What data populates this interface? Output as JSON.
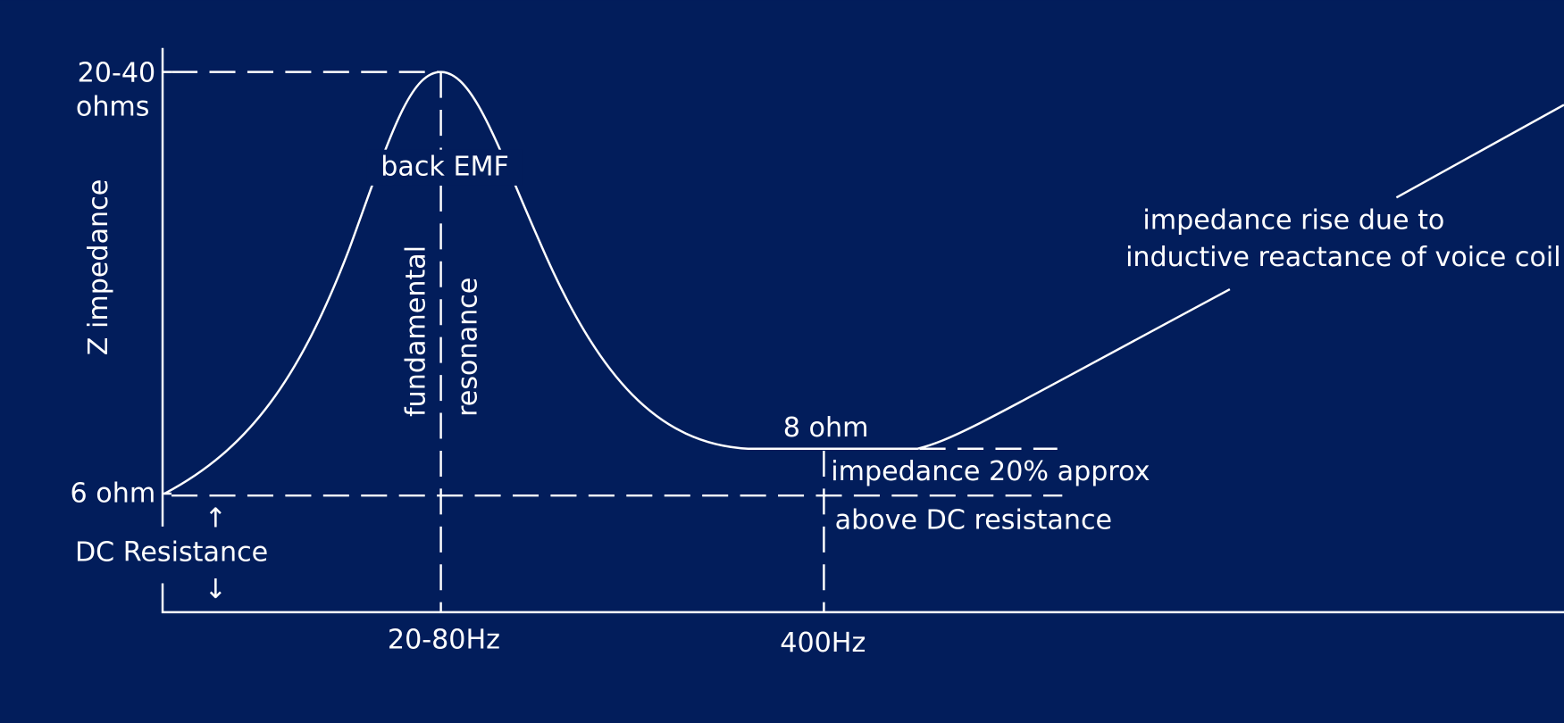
{
  "y_axis": {
    "title": "Z impedance",
    "top_label": [
      "20-40",
      "ohms"
    ],
    "bottom_label": "6 ohm"
  },
  "x_axis": {
    "labels": [
      "20-80Hz",
      "400Hz"
    ]
  },
  "dc_resistance": {
    "up_arrow": "↑",
    "label": "DC Resistance",
    "down_arrow": "↓"
  },
  "annotations": {
    "back_emf": "back EMF",
    "fundamental": "fundamental",
    "resonance": "resonance",
    "eight_ohm": "8 ohm",
    "approx": [
      "impedance 20% approx",
      "above DC resistance"
    ],
    "rise": [
      "impedance rise due to",
      "inductive reactance of voice coil"
    ]
  }
}
